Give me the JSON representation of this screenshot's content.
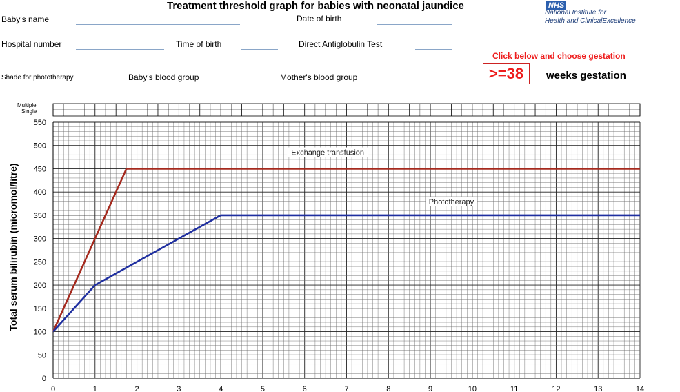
{
  "header": {
    "title": "Treatment threshold graph for babies with neonatal jaundice",
    "nhs_logo": "NHS",
    "nice_line1": "National Institute for",
    "nice_line2": "Health and ClinicalExcellence"
  },
  "form": {
    "babys_name": "Baby's name",
    "date_of_birth": "Date of birth",
    "hospital_number": "Hospital number",
    "time_of_birth": "Time of birth",
    "direct_antiglobulin_test": "Direct Antiglobulin Test",
    "shade_for_phototherapy": "Shade for phototherapy",
    "babys_blood_group": "Baby's blood group",
    "mothers_blood_group": "Mother's blood group"
  },
  "gestation": {
    "prompt": "Click below and choose gestation",
    "value": ">=38",
    "suffix": "weeks gestation"
  },
  "phototherapy_rows": {
    "multiple": "Multiple",
    "single": "Single"
  },
  "chart_data": {
    "type": "line",
    "title": "Treatment threshold graph for babies with neonatal jaundice",
    "xlabel": "",
    "ylabel": "Total serum bilirubin  (micromol/litre)",
    "xlim": [
      0,
      14
    ],
    "ylim": [
      0,
      550
    ],
    "x_ticks": [
      "0",
      "1",
      "2",
      "3",
      "4",
      "5",
      "6",
      "7",
      "8",
      "9",
      "10",
      "11",
      "12",
      "13",
      "14"
    ],
    "y_ticks": [
      "0",
      "50",
      "100",
      "150",
      "200",
      "250",
      "300",
      "350",
      "400",
      "450",
      "500",
      "550"
    ],
    "grid": true,
    "series": [
      {
        "name": "Exchange transfusion",
        "color": "#a52a1e",
        "x": [
          0,
          1.75,
          14
        ],
        "values": [
          100,
          450,
          450
        ]
      },
      {
        "name": "Phototherapy",
        "color": "#1f2fa0",
        "x": [
          0,
          1,
          1.5,
          2,
          2.5,
          3,
          3.5,
          4,
          14
        ],
        "values": [
          100,
          200,
          225,
          250,
          275,
          300,
          325,
          350,
          350
        ]
      }
    ],
    "annotations": [
      "Exchange transfusion",
      "Phototherapy"
    ]
  }
}
